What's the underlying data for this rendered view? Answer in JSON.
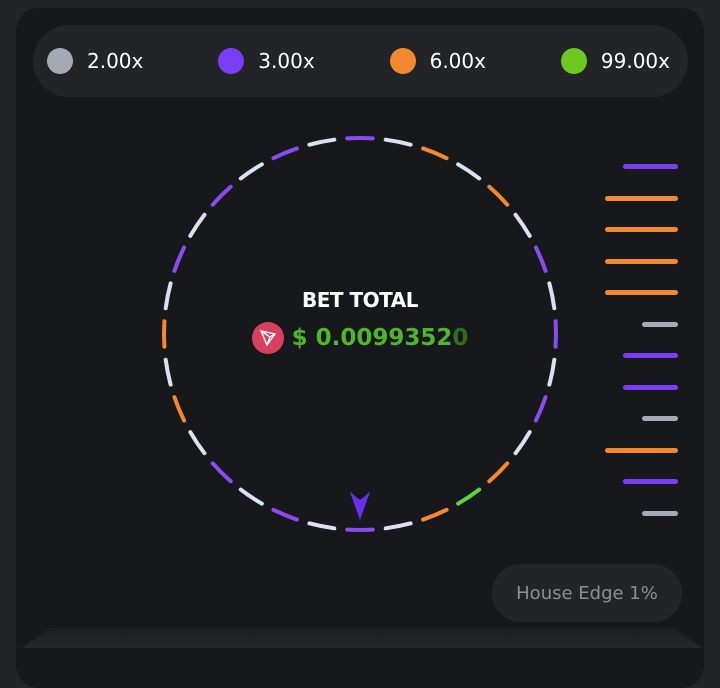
{
  "colors": {
    "gray": "#a4abb6",
    "purple": "#8a4cf0",
    "orange": "#f5882f",
    "green": "#5fd43a",
    "white": "#d8e2f0"
  },
  "legend": [
    {
      "label": "2.00x",
      "color": "#a4abb6"
    },
    {
      "label": "3.00x",
      "color": "#7a3ff5"
    },
    {
      "label": "6.00x",
      "color": "#f5882f"
    },
    {
      "label": "99.00x",
      "color": "#6cc91e"
    }
  ],
  "wheel": {
    "segments": [
      "purple",
      "white",
      "orange",
      "white",
      "orange",
      "white",
      "purple",
      "white",
      "purple",
      "white",
      "purple",
      "white",
      "orange",
      "green",
      "orange",
      "white",
      "purple",
      "white",
      "purple",
      "white",
      "purple",
      "white",
      "orange",
      "white",
      "orange",
      "white",
      "purple",
      "white",
      "purple",
      "white",
      "purple",
      "white"
    ],
    "pointer_icon": "arrow-down-pointer"
  },
  "bet": {
    "title": "BET TOTAL",
    "currency_icon": "tron-icon",
    "amount": "$ 0.0099352",
    "amount_fade": "0"
  },
  "history": [
    "purple",
    "orange",
    "orange",
    "orange",
    "orange",
    "gray",
    "purple",
    "purple",
    "gray",
    "orange",
    "purple",
    "gray"
  ],
  "house_edge": "House Edge 1%"
}
